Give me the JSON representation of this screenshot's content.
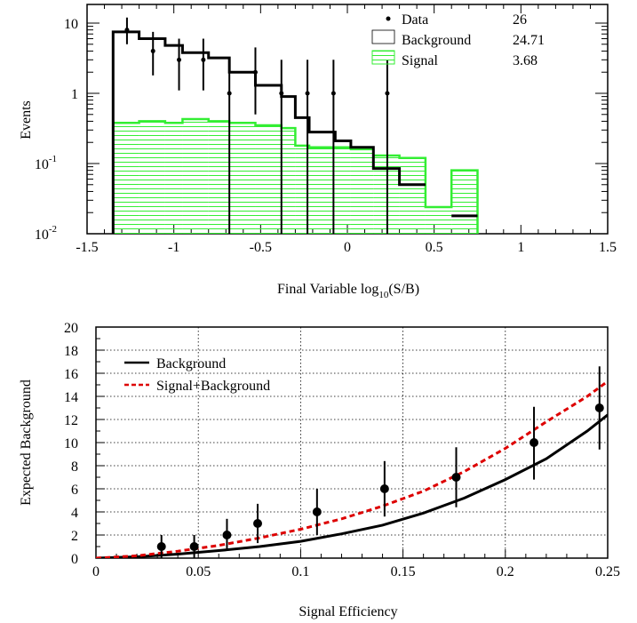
{
  "chart_data": [
    {
      "type": "bar",
      "xlabel_main": "Final Variable log",
      "xlabel_sub": "10",
      "xlabel_tail": "(S/B)",
      "ylabel": "Events",
      "xlim": [
        -1.5,
        1.5
      ],
      "ylim": [
        0.01,
        20
      ],
      "yscale": "log",
      "xticks": [
        {
          "v": -1.5,
          "label": "-1.5"
        },
        {
          "v": -1,
          "label": "-1"
        },
        {
          "v": -0.5,
          "label": "-0.5"
        },
        {
          "v": 0,
          "label": "0"
        },
        {
          "v": 0.5,
          "label": "0.5"
        },
        {
          "v": 1,
          "label": "1"
        },
        {
          "v": 1.5,
          "label": "1.5"
        }
      ],
      "yticks": [
        {
          "v": 10,
          "base": "10",
          "exp": ""
        },
        {
          "v": 1,
          "base": "1",
          "exp": ""
        },
        {
          "v": 0.1,
          "base": "10",
          "exp": "-1"
        },
        {
          "v": 0.01,
          "base": "10",
          "exp": "-2"
        }
      ],
      "legend": [
        {
          "label": "Data",
          "value": "26"
        },
        {
          "label": "Background",
          "value": "24.71"
        },
        {
          "label": "Signal",
          "value": "3.68"
        }
      ],
      "bin_edges": [
        -1.35,
        -1.2,
        -1.05,
        -0.95,
        -0.8,
        -0.68,
        -0.53,
        -0.38,
        -0.3,
        -0.22,
        -0.07,
        0.02,
        0.15,
        0.3,
        0.45,
        0.6,
        0.75
      ],
      "background": [
        7.5,
        6.0,
        4.8,
        3.8,
        3.2,
        2.0,
        1.3,
        0.9,
        0.45,
        0.28,
        0.21,
        0.17,
        0.085,
        0.05,
        null,
        0.018
      ],
      "signal": [
        0.38,
        0.4,
        0.38,
        0.43,
        0.4,
        0.38,
        0.35,
        0.32,
        0.18,
        0.17,
        0.17,
        0.16,
        0.13,
        0.12,
        0.024,
        0.08
      ],
      "data_points": [
        {
          "x": -1.27,
          "y": 8,
          "err": [
            5.0,
            12.0
          ]
        },
        {
          "x": -1.12,
          "y": 4,
          "err": [
            1.8,
            7.5
          ]
        },
        {
          "x": -0.97,
          "y": 3,
          "err": [
            1.1,
            6.0
          ]
        },
        {
          "x": -0.83,
          "y": 3,
          "err": [
            1.1,
            6.0
          ]
        },
        {
          "x": -0.68,
          "y": 1,
          "err": [
            0.01,
            3.0
          ]
        },
        {
          "x": -0.53,
          "y": 2,
          "err": [
            0.5,
            4.5
          ]
        },
        {
          "x": -0.38,
          "y": 1,
          "err": [
            0.01,
            3.0
          ]
        },
        {
          "x": -0.23,
          "y": 1,
          "err": [
            0.01,
            3.0
          ]
        },
        {
          "x": -0.08,
          "y": 1,
          "err": [
            0.01,
            3.0
          ]
        },
        {
          "x": 0.23,
          "y": 1,
          "err": [
            0.01,
            3.0
          ]
        }
      ],
      "colors": {
        "background": "#000000",
        "signal": "#33ee33",
        "data": "#000000"
      }
    },
    {
      "type": "line",
      "xlabel": "Signal Efficiency",
      "ylabel": "Expected Background",
      "xlim": [
        0,
        0.25
      ],
      "ylim": [
        0,
        20
      ],
      "grid": true,
      "legend_position": "top-left",
      "xticks": [
        "0",
        "0.05",
        "0.1",
        "0.15",
        "0.2",
        "0.25"
      ],
      "yticks": [
        "0",
        "2",
        "4",
        "6",
        "8",
        "10",
        "12",
        "14",
        "16",
        "18",
        "20"
      ],
      "series": [
        {
          "name": "Background",
          "color": "#000000",
          "style": "solid",
          "x": [
            0,
            0.02,
            0.04,
            0.06,
            0.08,
            0.1,
            0.12,
            0.14,
            0.16,
            0.18,
            0.2,
            0.22,
            0.24,
            0.25
          ],
          "y": [
            0,
            0.12,
            0.35,
            0.65,
            1.0,
            1.45,
            2.1,
            2.85,
            3.9,
            5.2,
            6.8,
            8.6,
            11.0,
            12.4
          ]
        },
        {
          "name": "Signal+Background",
          "color": "#dd0000",
          "style": "dashed",
          "x": [
            0,
            0.02,
            0.04,
            0.06,
            0.08,
            0.1,
            0.12,
            0.14,
            0.16,
            0.18,
            0.2,
            0.22,
            0.24,
            0.25
          ],
          "y": [
            0,
            0.2,
            0.6,
            1.1,
            1.75,
            2.5,
            3.4,
            4.5,
            5.8,
            7.5,
            9.5,
            11.8,
            14.0,
            15.3
          ]
        }
      ],
      "data_points": [
        {
          "x": 0.032,
          "y": 1,
          "lo": 0,
          "hi": 2.0
        },
        {
          "x": 0.048,
          "y": 1,
          "lo": 0,
          "hi": 2.0
        },
        {
          "x": 0.064,
          "y": 2,
          "lo": 0.7,
          "hi": 3.4
        },
        {
          "x": 0.079,
          "y": 3,
          "lo": 1.3,
          "hi": 4.7
        },
        {
          "x": 0.108,
          "y": 4,
          "lo": 2.0,
          "hi": 6.0
        },
        {
          "x": 0.141,
          "y": 6,
          "lo": 3.6,
          "hi": 8.4
        },
        {
          "x": 0.176,
          "y": 7,
          "lo": 4.4,
          "hi": 9.6
        },
        {
          "x": 0.214,
          "y": 10,
          "lo": 6.8,
          "hi": 13.1
        },
        {
          "x": 0.246,
          "y": 13,
          "lo": 9.4,
          "hi": 16.6
        }
      ]
    }
  ]
}
